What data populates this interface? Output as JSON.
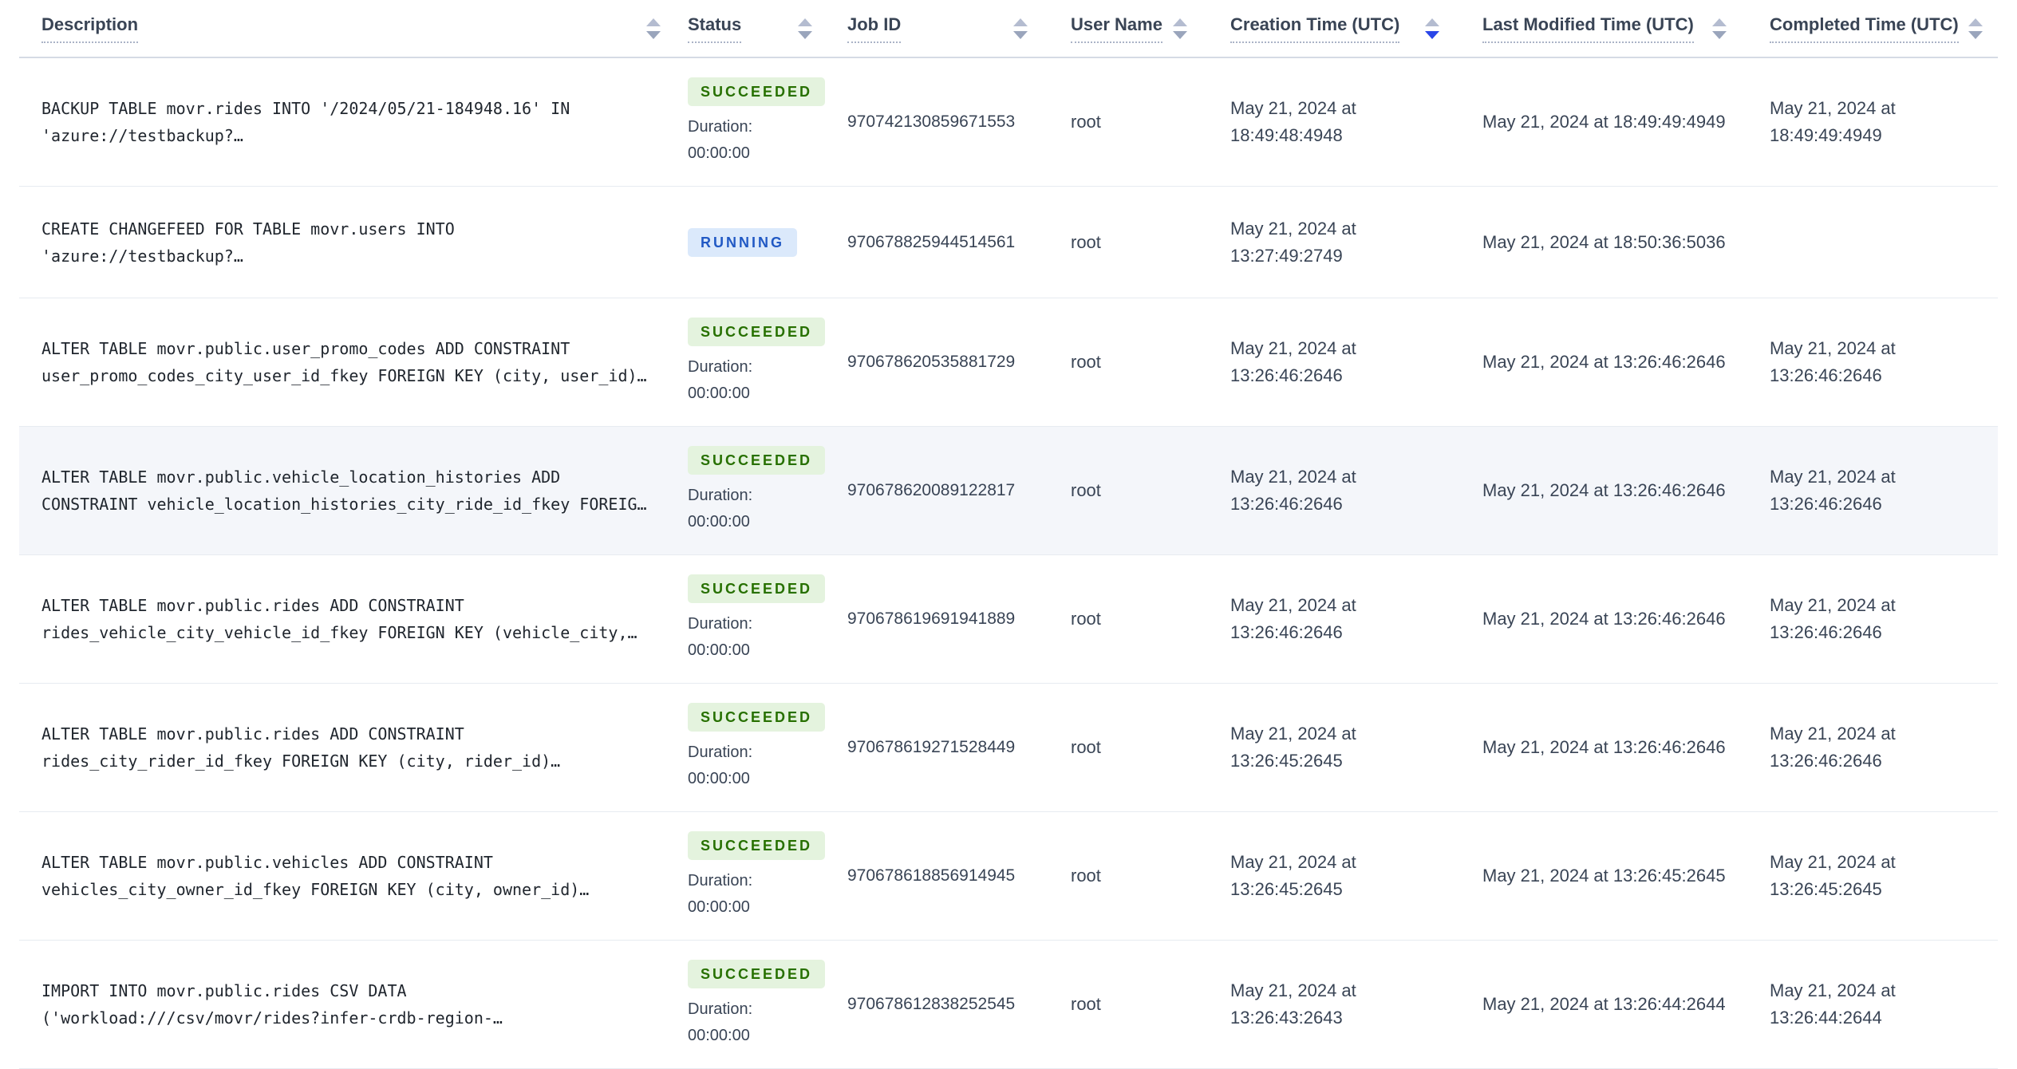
{
  "app": "CockroachDB Console Jobs Table",
  "icons": {
    "sort": "sort-arrows-icon"
  },
  "colors": {
    "text": "#394455",
    "mono-text": "#20262e",
    "header-border": "#d5dbe5",
    "row-border": "#e7ebf1",
    "dotted": "#aab3c7",
    "highlight": "#f4f6fa",
    "arrow-up": "#b4bcd0",
    "arrow-down": "#9aa5bc",
    "arrow-active": "#2a46e8",
    "succeeded-bg": "#e4f3de",
    "succeeded-text": "#277000",
    "running-bg": "#dbe9fb",
    "running-text": "#2159c4"
  },
  "table": {
    "columns": [
      {
        "id": "description",
        "label": "Description",
        "sortable": true,
        "sorted": null
      },
      {
        "id": "status",
        "label": "Status",
        "sortable": true,
        "sorted": null
      },
      {
        "id": "job-id",
        "label": "Job ID",
        "sortable": true,
        "sorted": null
      },
      {
        "id": "user-name",
        "label": "User Name",
        "sortable": true,
        "sorted": null
      },
      {
        "id": "creation-time",
        "label": "Creation Time (UTC)",
        "sortable": true,
        "sorted": "desc"
      },
      {
        "id": "last-modified-time",
        "label": "Last Modified Time (UTC)",
        "sortable": true,
        "sorted": null
      },
      {
        "id": "completed-time",
        "label": "Completed Time (UTC)",
        "sortable": true,
        "sorted": null
      }
    ],
    "rows": [
      {
        "description": "BACKUP TABLE movr.rides INTO '/2024/05/21-184948.16' IN 'azure://testbackup?…",
        "status": "SUCCEEDED",
        "duration_label": "Duration:",
        "duration": "00:00:00",
        "job_id": "970742130859671553",
        "user_name": "root",
        "creation_time": "May 21, 2024 at 18:49:48:4948",
        "last_modified_time": "May 21, 2024 at 18:49:49:4949",
        "completed_time": "May 21, 2024 at 18:49:49:4949",
        "highlighted": false
      },
      {
        "description": "CREATE CHANGEFEED FOR TABLE movr.users INTO 'azure://testbackup?…",
        "status": "RUNNING",
        "duration_label": "",
        "duration": "",
        "job_id": "970678825944514561",
        "user_name": "root",
        "creation_time": "May 21, 2024 at 13:27:49:2749",
        "last_modified_time": "May 21, 2024 at 18:50:36:5036",
        "completed_time": "",
        "highlighted": false
      },
      {
        "description": "ALTER TABLE movr.public.user_promo_codes ADD CONSTRAINT user_promo_codes_city_user_id_fkey FOREIGN KEY (city, user_id)…",
        "status": "SUCCEEDED",
        "duration_label": "Duration:",
        "duration": "00:00:00",
        "job_id": "970678620535881729",
        "user_name": "root",
        "creation_time": "May 21, 2024 at 13:26:46:2646",
        "last_modified_time": "May 21, 2024 at 13:26:46:2646",
        "completed_time": "May 21, 2024 at 13:26:46:2646",
        "highlighted": false
      },
      {
        "description": "ALTER TABLE movr.public.vehicle_location_histories ADD CONSTRAINT vehicle_location_histories_city_ride_id_fkey FOREIG…",
        "status": "SUCCEEDED",
        "duration_label": "Duration:",
        "duration": "00:00:00",
        "job_id": "970678620089122817",
        "user_name": "root",
        "creation_time": "May 21, 2024 at 13:26:46:2646",
        "last_modified_time": "May 21, 2024 at 13:26:46:2646",
        "completed_time": "May 21, 2024 at 13:26:46:2646",
        "highlighted": true
      },
      {
        "description": "ALTER TABLE movr.public.rides ADD CONSTRAINT rides_vehicle_city_vehicle_id_fkey FOREIGN KEY (vehicle_city,…",
        "status": "SUCCEEDED",
        "duration_label": "Duration:",
        "duration": "00:00:00",
        "job_id": "970678619691941889",
        "user_name": "root",
        "creation_time": "May 21, 2024 at 13:26:46:2646",
        "last_modified_time": "May 21, 2024 at 13:26:46:2646",
        "completed_time": "May 21, 2024 at 13:26:46:2646",
        "highlighted": false
      },
      {
        "description": "ALTER TABLE movr.public.rides ADD CONSTRAINT rides_city_rider_id_fkey FOREIGN KEY (city, rider_id)…",
        "status": "SUCCEEDED",
        "duration_label": "Duration:",
        "duration": "00:00:00",
        "job_id": "970678619271528449",
        "user_name": "root",
        "creation_time": "May 21, 2024 at 13:26:45:2645",
        "last_modified_time": "May 21, 2024 at 13:26:46:2646",
        "completed_time": "May 21, 2024 at 13:26:46:2646",
        "highlighted": false
      },
      {
        "description": "ALTER TABLE movr.public.vehicles ADD CONSTRAINT vehicles_city_owner_id_fkey FOREIGN KEY (city, owner_id)…",
        "status": "SUCCEEDED",
        "duration_label": "Duration:",
        "duration": "00:00:00",
        "job_id": "970678618856914945",
        "user_name": "root",
        "creation_time": "May 21, 2024 at 13:26:45:2645",
        "last_modified_time": "May 21, 2024 at 13:26:45:2645",
        "completed_time": "May 21, 2024 at 13:26:45:2645",
        "highlighted": false
      },
      {
        "description": "IMPORT INTO movr.public.rides CSV DATA ('workload:///csv/movr/rides?infer-crdb-region-…",
        "status": "SUCCEEDED",
        "duration_label": "Duration:",
        "duration": "00:00:00",
        "job_id": "970678612838252545",
        "user_name": "root",
        "creation_time": "May 21, 2024 at 13:26:43:2643",
        "last_modified_time": "May 21, 2024 at 13:26:44:2644",
        "completed_time": "May 21, 2024 at 13:26:44:2644",
        "highlighted": false
      }
    ]
  }
}
